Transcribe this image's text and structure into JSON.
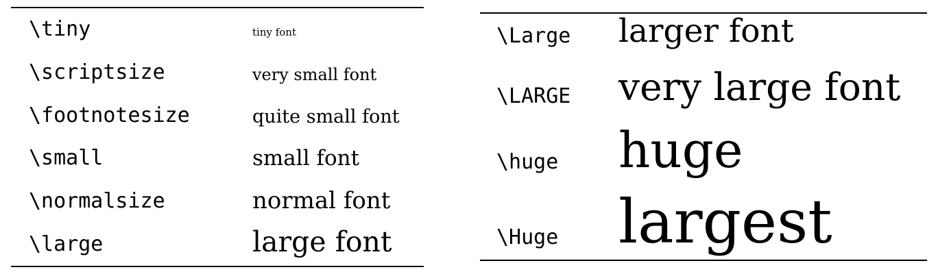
{
  "left_table": {
    "rows": [
      {
        "command": "\\tiny",
        "sample": "tiny font"
      },
      {
        "command": "\\scriptsize",
        "sample": "very small font"
      },
      {
        "command": "\\footnotesize",
        "sample": "quite small font"
      },
      {
        "command": "\\small",
        "sample": "small font"
      },
      {
        "command": "\\normalsize",
        "sample": "normal font"
      },
      {
        "command": "\\large",
        "sample": "large font"
      }
    ]
  },
  "right_table": {
    "rows": [
      {
        "command": "\\Large",
        "sample": "larger font"
      },
      {
        "command": "\\LARGE",
        "sample": "very large font"
      },
      {
        "command": "\\huge",
        "sample": "huge"
      },
      {
        "command": "\\Huge",
        "sample": "largest"
      }
    ]
  }
}
